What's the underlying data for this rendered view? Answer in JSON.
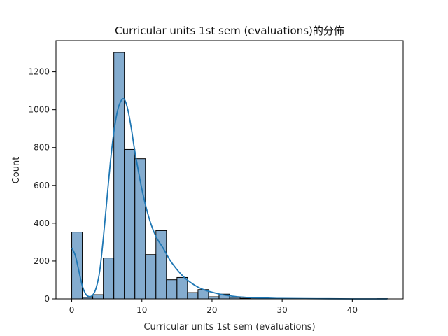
{
  "chart_data": {
    "type": "bar",
    "subtype": "histogram_with_kde",
    "title": "Curricular units 1st sem (evaluations)的分佈",
    "xlabel": "Curricular units 1st sem (evaluations)",
    "ylabel": "Count",
    "xlim": [
      -2.25,
      47.25
    ],
    "ylim": [
      0,
      1365
    ],
    "xticks": [
      0,
      10,
      20,
      30,
      40
    ],
    "yticks": [
      0,
      200,
      400,
      600,
      800,
      1000,
      1200
    ],
    "bins": [
      {
        "x0": 0.0,
        "x1": 1.5,
        "count": 353
      },
      {
        "x0": 1.5,
        "x1": 3.0,
        "count": 8
      },
      {
        "x0": 3.0,
        "x1": 4.5,
        "count": 22
      },
      {
        "x0": 4.5,
        "x1": 6.0,
        "count": 216
      },
      {
        "x0": 6.0,
        "x1": 7.5,
        "count": 1302
      },
      {
        "x0": 7.5,
        "x1": 9.0,
        "count": 790
      },
      {
        "x0": 9.0,
        "x1": 10.5,
        "count": 741
      },
      {
        "x0": 10.5,
        "x1": 12.0,
        "count": 234
      },
      {
        "x0": 12.0,
        "x1": 13.5,
        "count": 361
      },
      {
        "x0": 13.5,
        "x1": 15.0,
        "count": 101
      },
      {
        "x0": 15.0,
        "x1": 16.5,
        "count": 113
      },
      {
        "x0": 16.5,
        "x1": 18.0,
        "count": 33
      },
      {
        "x0": 18.0,
        "x1": 19.5,
        "count": 49
      },
      {
        "x0": 19.5,
        "x1": 21.0,
        "count": 11
      },
      {
        "x0": 21.0,
        "x1": 22.5,
        "count": 25
      },
      {
        "x0": 22.5,
        "x1": 24.0,
        "count": 8
      },
      {
        "x0": 24.0,
        "x1": 25.5,
        "count": 3
      },
      {
        "x0": 25.5,
        "x1": 27.0,
        "count": 1
      },
      {
        "x0": 27.0,
        "x1": 28.5,
        "count": 1
      },
      {
        "x0": 28.5,
        "x1": 30.0,
        "count": 0
      },
      {
        "x0": 30.0,
        "x1": 31.5,
        "count": 1
      },
      {
        "x0": 31.5,
        "x1": 33.0,
        "count": 0
      },
      {
        "x0": 33.0,
        "x1": 34.5,
        "count": 1
      },
      {
        "x0": 34.5,
        "x1": 36.0,
        "count": 0
      },
      {
        "x0": 36.0,
        "x1": 37.5,
        "count": 0
      },
      {
        "x0": 37.5,
        "x1": 39.0,
        "count": 0
      },
      {
        "x0": 39.0,
        "x1": 40.5,
        "count": 0
      },
      {
        "x0": 40.5,
        "x1": 42.0,
        "count": 0
      },
      {
        "x0": 42.0,
        "x1": 43.5,
        "count": 0
      },
      {
        "x0": 43.5,
        "x1": 45.0,
        "count": 1
      }
    ],
    "kde": {
      "x": [
        0,
        0.5,
        1,
        1.5,
        2,
        2.5,
        3,
        3.5,
        4,
        4.5,
        5,
        5.5,
        6,
        6.5,
        7,
        7.5,
        8,
        8.5,
        9,
        10,
        11,
        12,
        13,
        14,
        15,
        16,
        17,
        18,
        19,
        20,
        21,
        22,
        23,
        24,
        26,
        28,
        30,
        35,
        40,
        45
      ],
      "y": [
        270,
        230,
        150,
        70,
        25,
        12,
        20,
        60,
        150,
        320,
        520,
        720,
        880,
        990,
        1045,
        1055,
        1000,
        900,
        780,
        580,
        430,
        330,
        270,
        205,
        155,
        115,
        85,
        62,
        46,
        35,
        26,
        19,
        14,
        10,
        6,
        4,
        2,
        1,
        0,
        0
      ]
    },
    "colors": {
      "bar_fill": "#6e9ec7",
      "bar_edge": "#000000",
      "kde_line": "#1f77b4"
    },
    "grid": false,
    "legend": "none"
  }
}
